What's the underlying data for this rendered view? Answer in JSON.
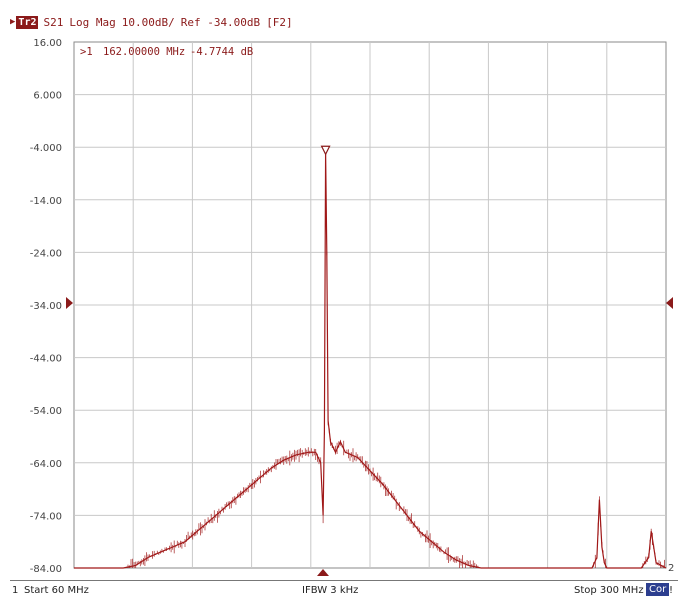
{
  "header": {
    "trace_label": "Tr2",
    "measurement": "S21",
    "format": "Log Mag",
    "scale": "10.00dB/",
    "reference": "Ref -34.00dB",
    "trace_ref": "[F2]"
  },
  "marker": {
    "label": ">1",
    "frequency": "162.00000 MHz",
    "value": "-4.7744 dB"
  },
  "footer": {
    "channel": "1",
    "start": "Start 60 MHz",
    "ifbw": "IFBW 3 kHz",
    "stop": "Stop 300 MHz",
    "cor": "Cor",
    "channel_end": "!"
  },
  "chart_data": {
    "type": "line",
    "xlabel": "",
    "ylabel": "",
    "xlim": [
      60,
      300
    ],
    "ylim": [
      -84,
      16
    ],
    "ytick_labels": [
      "16.00",
      "6.000",
      "-4.000",
      "-14.00",
      "-24.00",
      "-34.00",
      "-44.00",
      "-54.00",
      "-64.00",
      "-74.00",
      "-84.00"
    ],
    "reference_level": -34,
    "trace_end_label": "2",
    "grid": true,
    "colors": {
      "trace": "#a01818",
      "grid": "#c8c8c8",
      "marker": "#8b1a1a"
    },
    "marker_point": {
      "x": 162,
      "y": -4.7744
    },
    "series": [
      {
        "x": [
          60,
          70,
          75,
          80,
          85,
          90,
          95,
          100,
          105,
          110,
          115,
          120,
          125,
          130,
          135,
          140,
          145,
          150,
          155,
          158,
          160,
          161,
          161.5,
          162,
          162.5,
          163,
          164,
          166,
          168,
          170,
          175,
          180,
          185,
          190,
          195,
          200,
          205,
          210,
          215,
          220,
          225,
          230,
          235,
          240,
          245,
          250,
          255,
          260,
          265,
          270,
          272,
          273,
          274,
          275,
          276,
          280,
          285,
          290,
          293,
          294,
          295,
          296,
          300
        ],
        "y": [
          -84,
          -84,
          -84,
          -84,
          -83.5,
          -82,
          -81,
          -80,
          -79,
          -77,
          -75,
          -73,
          -71,
          -69,
          -67,
          -65,
          -63.5,
          -62.5,
          -62,
          -62,
          -64,
          -74,
          -58,
          -4.8,
          -24,
          -56,
          -60,
          -62,
          -60,
          -62,
          -63,
          -65.5,
          -68,
          -71,
          -74,
          -77,
          -79,
          -81,
          -82.5,
          -83.5,
          -84,
          -84,
          -84,
          -84,
          -84,
          -84,
          -84,
          -84,
          -84,
          -84,
          -82,
          -71,
          -80,
          -83,
          -84,
          -84,
          -84,
          -84,
          -82,
          -77,
          -80,
          -83,
          -84
        ]
      }
    ]
  }
}
